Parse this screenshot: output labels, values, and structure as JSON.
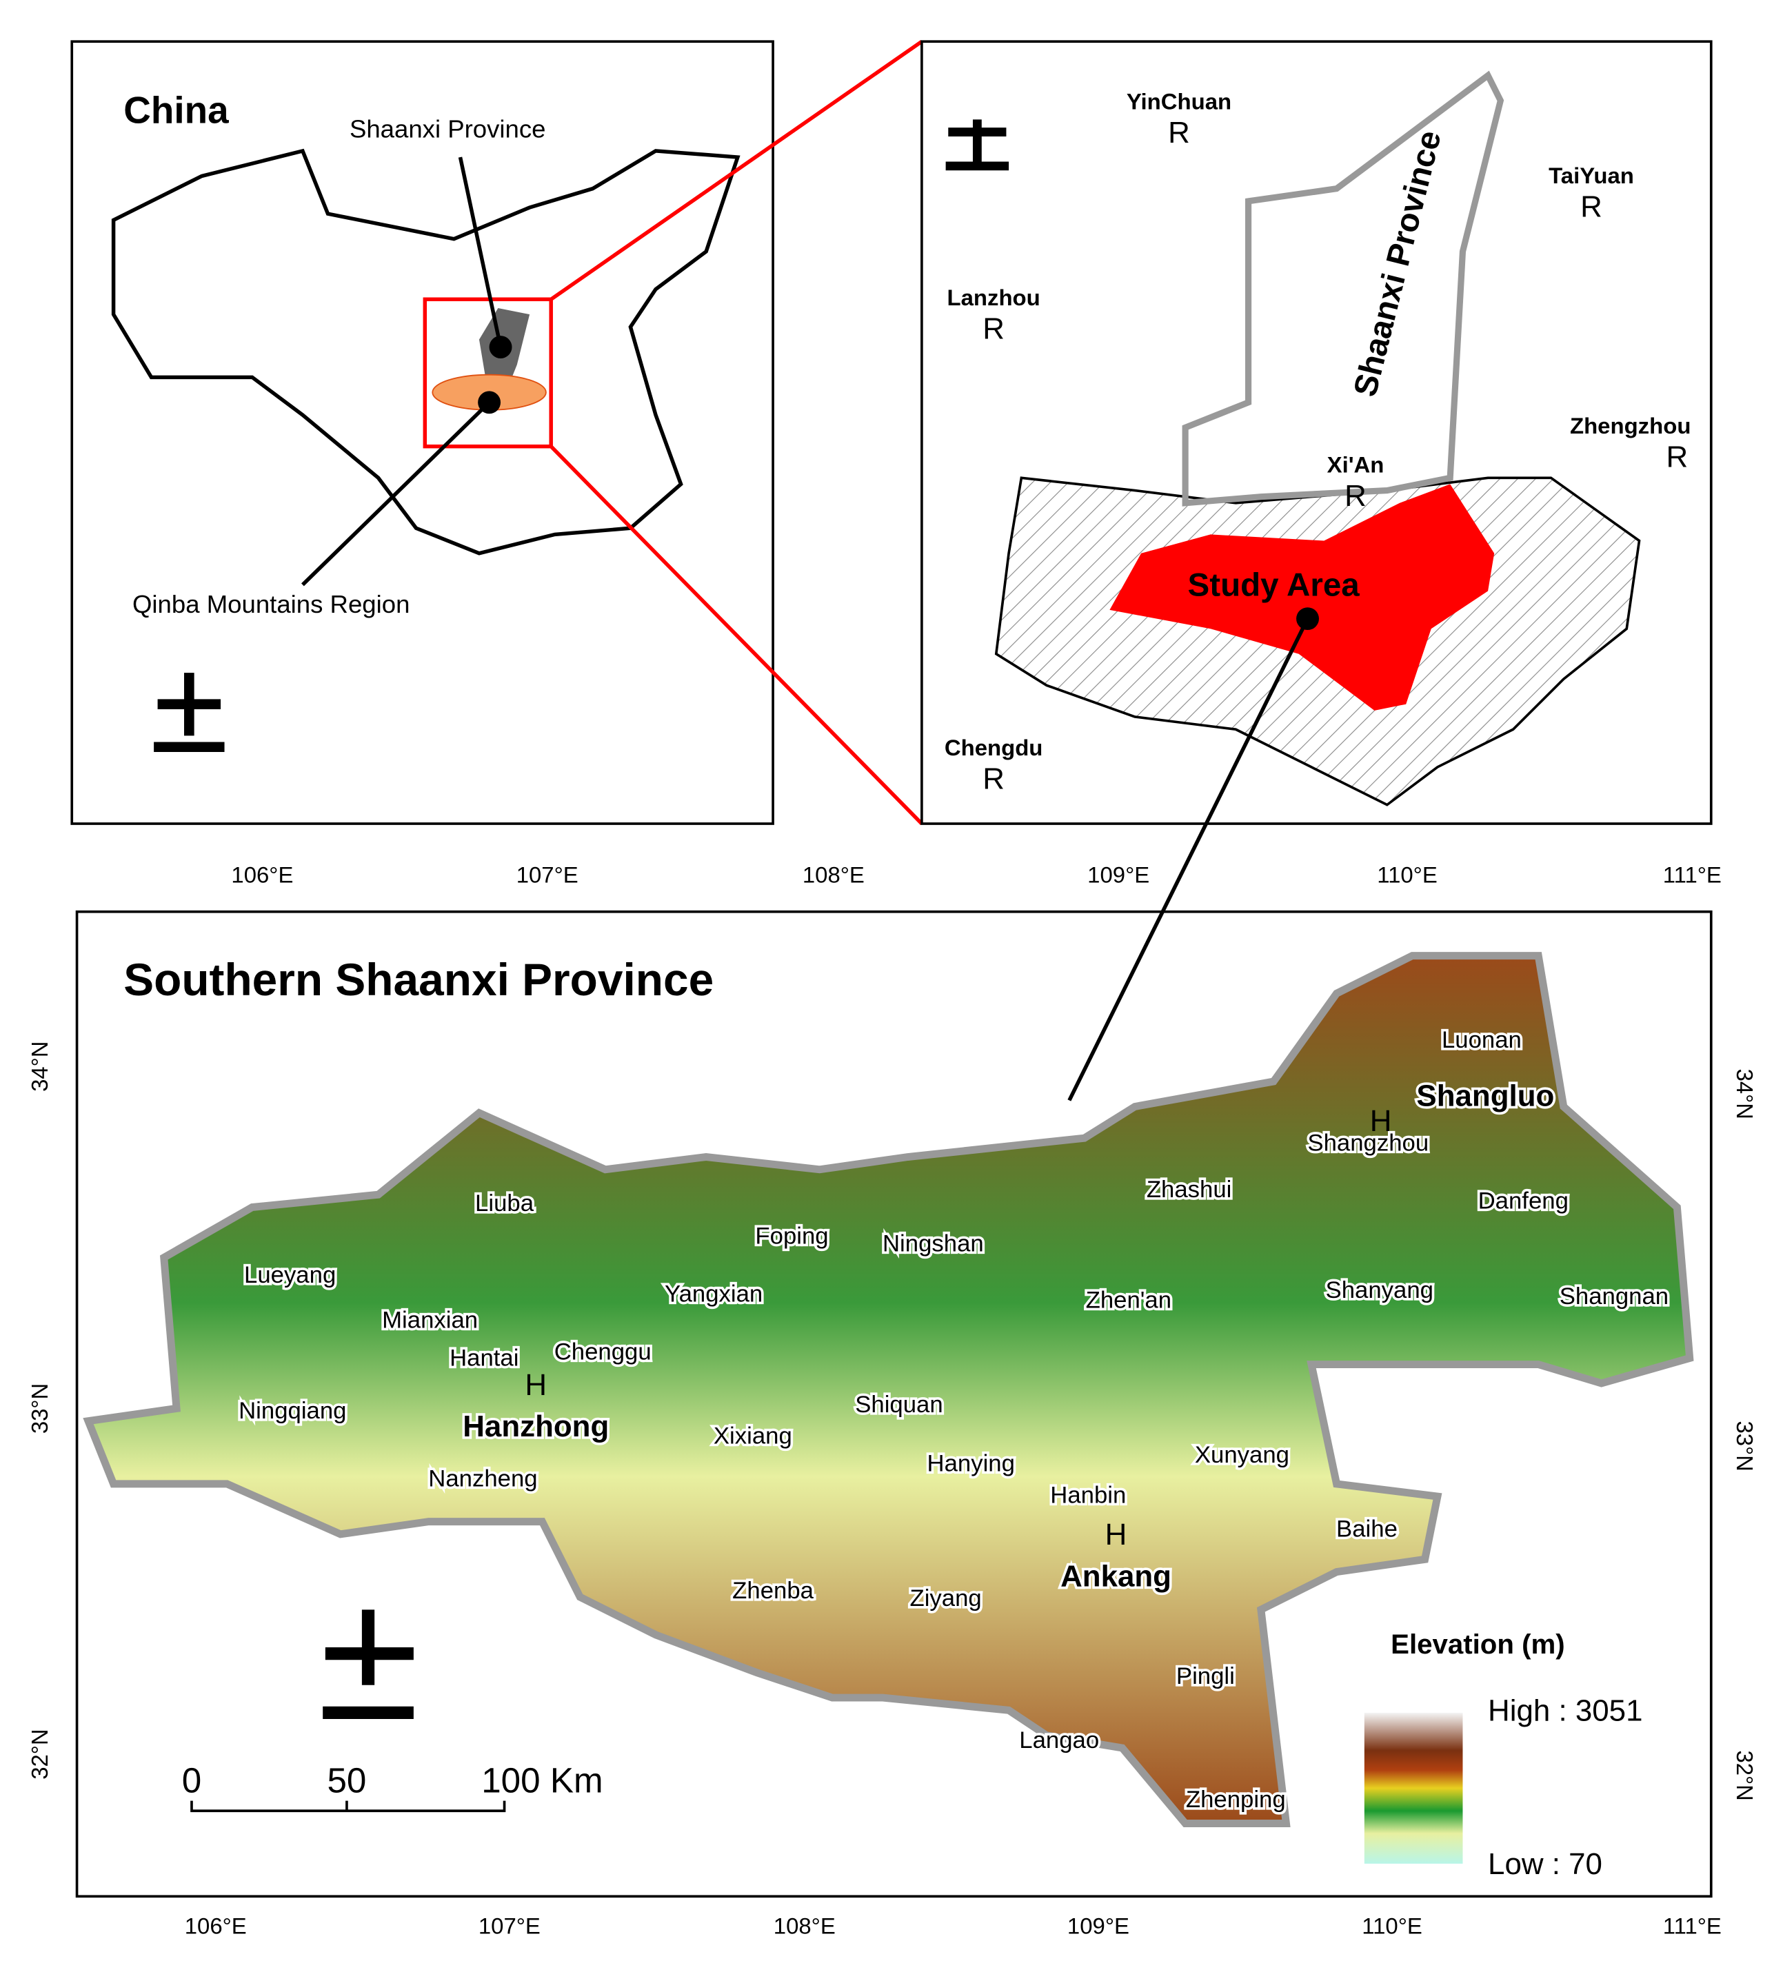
{
  "inset_china": {
    "title": "China",
    "labels": [
      "Shaanxi Province",
      "Qinba Mountains Region"
    ]
  },
  "inset_region": {
    "cities": [
      {
        "name": "YinChuan",
        "symbol": "R"
      },
      {
        "name": "TaiYuan",
        "symbol": "R"
      },
      {
        "name": "Lanzhou",
        "symbol": "R"
      },
      {
        "name": "Zhengzhou",
        "symbol": "R"
      },
      {
        "name": "Xi'An",
        "symbol": "R"
      },
      {
        "name": "Chengdu",
        "symbol": "R"
      }
    ],
    "province_label": "Shaanxi Province",
    "study_area": "Study Area"
  },
  "main_map": {
    "title": "Southern Shaanxi Province",
    "top_ticks": [
      "106°E",
      "107°E",
      "108°E",
      "109°E",
      "110°E",
      "111°E"
    ],
    "bottom_ticks": [
      "106°E",
      "107°E",
      "108°E",
      "109°E",
      "110°E",
      "111°E"
    ],
    "left_ticks": [
      "34°N",
      "33°N",
      "32°N"
    ],
    "right_ticks": [
      "34°N",
      "33°N",
      "32°N"
    ],
    "cities": [
      {
        "name": "Shangluo",
        "symbol": "H"
      },
      {
        "name": "Hanzhong",
        "symbol": "H"
      },
      {
        "name": "Ankang",
        "symbol": "H"
      }
    ],
    "counties": [
      "Luonan",
      "Shangzhou",
      "Danfeng",
      "Zhashui",
      "Shanyang",
      "Shangnan",
      "Zhen'an",
      "Ningshan",
      "Foping",
      "Liuba",
      "Yangxian",
      "Lueyang",
      "Mianxian",
      "Hantai",
      "Chenggu",
      "Ningqiang",
      "Nanzheng",
      "Xixiang",
      "Shiquan",
      "Hanying",
      "Hanbin",
      "Xunyang",
      "Baihe",
      "Zhenba",
      "Ziyang",
      "Pingli",
      "Langao",
      "Zhenping"
    ],
    "legend": {
      "title": "Elevation (m)",
      "high": "High : 3051",
      "low": "Low : 70"
    },
    "scale_bar": [
      "0",
      "50",
      "100 Km"
    ]
  }
}
